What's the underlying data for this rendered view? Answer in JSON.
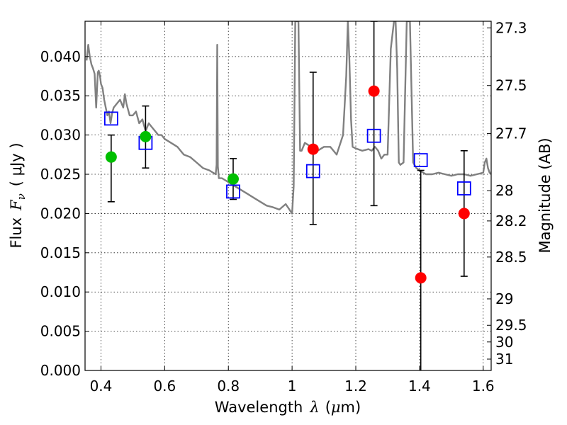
{
  "chart_data": {
    "type": "scatter",
    "title": "",
    "xlabel": "Wavelength",
    "xlabel_symbol": "λ",
    "xlabel_unit_prefix": "(",
    "xlabel_unit_mu": "μ",
    "xlabel_unit_rest": "m)",
    "ylabel": "Flux",
    "ylabel_symbol": "F",
    "ylabel_symbol_sub": "ν",
    "ylabel_unit": "( μJy )",
    "ylabel_right": "Magnitude (AB)",
    "xlim": [
      0.35,
      1.625
    ],
    "ylim": [
      0.0,
      0.0445
    ],
    "grid": true,
    "x_ticks": [
      0.4,
      0.6,
      0.8,
      1.0,
      1.2,
      1.4,
      1.6
    ],
    "x_tick_labels": [
      "0.4",
      "0.6",
      "0.8",
      "1",
      "1.2",
      "1.4",
      "1.6"
    ],
    "y_ticks": [
      0.0,
      0.005,
      0.01,
      0.015,
      0.02,
      0.025,
      0.03,
      0.035,
      0.04
    ],
    "y_tick_labels": [
      "0.000",
      "0.005",
      "0.010",
      "0.015",
      "0.020",
      "0.025",
      "0.030",
      "0.035",
      "0.040"
    ],
    "right_ticks": [
      27.3,
      27.5,
      27.7,
      28,
      28.2,
      28.5,
      29,
      29.5,
      30,
      31
    ],
    "right_tick_labels": [
      "27.3",
      "27.5",
      "27.7",
      "28",
      "28.2",
      "28.5",
      "29",
      "29.5",
      "30",
      "31"
    ],
    "series": [
      {
        "kind": "line",
        "color": "#808080",
        "x": [
          0.355,
          0.36,
          0.365,
          0.37,
          0.375,
          0.38,
          0.385,
          0.39,
          0.393,
          0.397,
          0.4,
          0.405,
          0.41,
          0.415,
          0.42,
          0.425,
          0.43,
          0.435,
          0.44,
          0.45,
          0.46,
          0.47,
          0.475,
          0.48,
          0.49,
          0.5,
          0.51,
          0.52,
          0.53,
          0.54,
          0.55,
          0.56,
          0.57,
          0.58,
          0.59,
          0.6,
          0.62,
          0.64,
          0.66,
          0.68,
          0.7,
          0.72,
          0.74,
          0.76,
          0.763,
          0.765,
          0.767,
          0.77,
          0.78,
          0.8,
          0.82,
          0.84,
          0.86,
          0.88,
          0.9,
          0.92,
          0.94,
          0.96,
          0.98,
          1.0,
          1.005,
          1.01,
          1.013,
          1.016,
          1.02,
          1.025,
          1.03,
          1.04,
          1.06,
          1.08,
          1.1,
          1.12,
          1.14,
          1.16,
          1.17,
          1.175,
          1.18,
          1.185,
          1.19,
          1.2,
          1.22,
          1.24,
          1.25,
          1.26,
          1.27,
          1.28,
          1.29,
          1.3,
          1.31,
          1.32,
          1.325,
          1.33,
          1.335,
          1.34,
          1.35,
          1.36,
          1.365,
          1.37,
          1.38,
          1.39,
          1.4,
          1.42,
          1.44,
          1.46,
          1.48,
          1.5,
          1.52,
          1.54,
          1.56,
          1.58,
          1.6,
          1.605,
          1.61,
          1.615,
          1.62,
          1.625
        ],
        "y": [
          0.0395,
          0.0415,
          0.04,
          0.039,
          0.0385,
          0.0378,
          0.0335,
          0.038,
          0.0382,
          0.0375,
          0.0365,
          0.036,
          0.0345,
          0.0335,
          0.0325,
          0.033,
          0.0315,
          0.0328,
          0.0335,
          0.034,
          0.0345,
          0.0335,
          0.0352,
          0.034,
          0.0325,
          0.0325,
          0.033,
          0.0315,
          0.032,
          0.0305,
          0.0315,
          0.031,
          0.0305,
          0.03,
          0.03,
          0.0295,
          0.029,
          0.0285,
          0.0275,
          0.0272,
          0.0265,
          0.0258,
          0.0255,
          0.025,
          0.0262,
          0.0415,
          0.026,
          0.0245,
          0.0245,
          0.024,
          0.0235,
          0.023,
          0.0225,
          0.022,
          0.0215,
          0.021,
          0.0208,
          0.0205,
          0.0212,
          0.02,
          0.0235,
          0.0445,
          0.0445,
          0.0445,
          0.0445,
          0.028,
          0.028,
          0.029,
          0.0285,
          0.028,
          0.0285,
          0.0285,
          0.0275,
          0.03,
          0.0375,
          0.0445,
          0.0395,
          0.032,
          0.0285,
          0.0283,
          0.028,
          0.0282,
          0.028,
          0.0285,
          0.028,
          0.027,
          0.0275,
          0.0275,
          0.041,
          0.0445,
          0.0445,
          0.0385,
          0.0265,
          0.0262,
          0.0265,
          0.0445,
          0.0445,
          0.0445,
          0.0265,
          0.0258,
          0.0255,
          0.025,
          0.025,
          0.0252,
          0.025,
          0.0248,
          0.025,
          0.025,
          0.0248,
          0.025,
          0.0252,
          0.0265,
          0.027,
          0.0258,
          0.0252,
          0.025
        ]
      },
      {
        "kind": "errorbar",
        "color": "#000000",
        "x": [
          0.432,
          0.54,
          0.815,
          1.066,
          1.257,
          1.404,
          1.54
        ],
        "low": [
          0.0215,
          0.0258,
          0.0218,
          0.0186,
          0.021,
          -0.005,
          0.012
        ],
        "high": [
          0.03,
          0.0337,
          0.027,
          0.038,
          0.0445,
          0.0255,
          0.028
        ]
      },
      {
        "kind": "markers",
        "marker": "square",
        "color": "#0000ff",
        "x": [
          0.432,
          0.54,
          0.815,
          1.066,
          1.257,
          1.404,
          1.54
        ],
        "y": [
          0.0321,
          0.029,
          0.0228,
          0.0254,
          0.0299,
          0.0268,
          0.0232
        ]
      },
      {
        "kind": "markers",
        "marker": "circle",
        "color": "#00bf00",
        "x": [
          0.432,
          0.54,
          0.815
        ],
        "y": [
          0.0272,
          0.0298,
          0.0244
        ]
      },
      {
        "kind": "markers",
        "marker": "circle",
        "color": "#ff0000",
        "x": [
          1.066,
          1.257,
          1.404,
          1.54
        ],
        "y": [
          0.0282,
          0.0356,
          0.0118,
          0.02
        ]
      }
    ]
  }
}
